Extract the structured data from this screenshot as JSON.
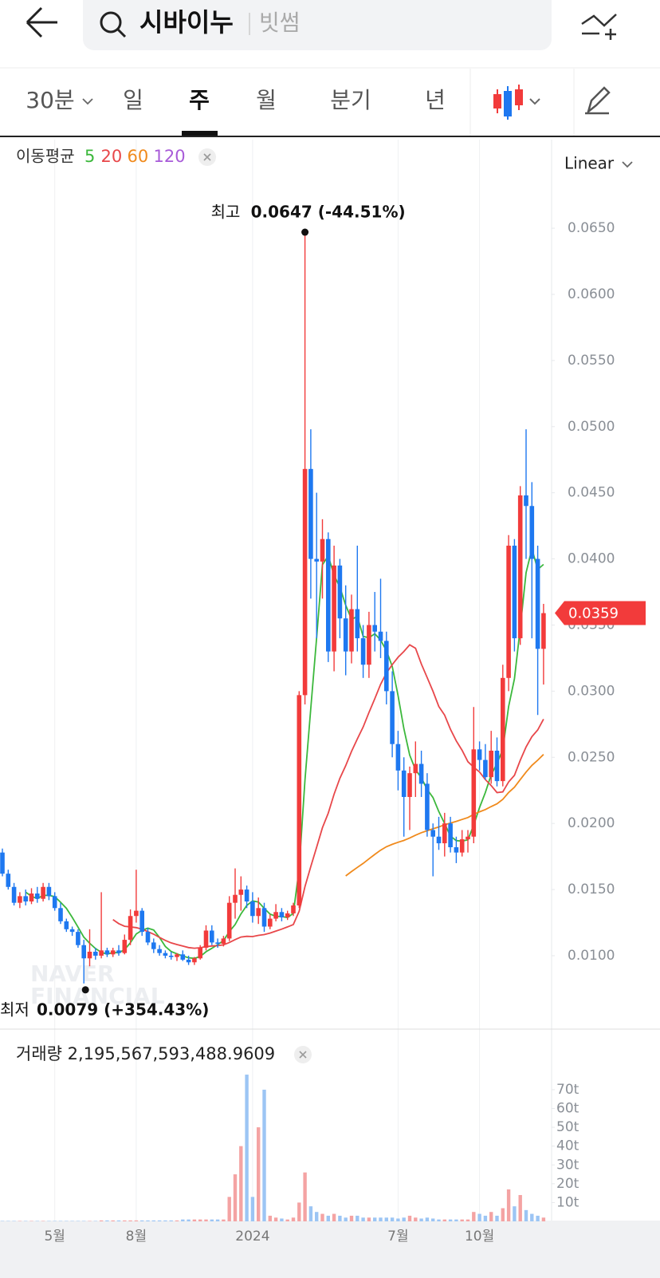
{
  "header": {
    "search": "시바이누",
    "exchange": "빗썸"
  },
  "tabs": [
    "30분",
    "일",
    "주",
    "월",
    "분기",
    "년"
  ],
  "selected_tab": 2,
  "scale_mode": "Linear",
  "watermark": [
    "NAVER",
    "FINANCIAL"
  ],
  "chart_data": [
    {
      "type": "candlestick",
      "legend_title": "이동평균",
      "moving_averages": [
        {
          "period": 5,
          "color": "#3cb83c"
        },
        {
          "period": 20,
          "color": "#e8474a"
        },
        {
          "period": 60,
          "color": "#f08a1c"
        },
        {
          "period": 120,
          "color": "#a85bd8"
        }
      ],
      "up_color": "#f23b3b",
      "down_color": "#1e78f0",
      "categories": [
        null,
        null,
        null,
        null,
        null,
        null,
        null,
        null,
        null,
        "5월",
        null,
        null,
        null,
        null,
        null,
        null,
        null,
        null,
        null,
        null,
        null,
        null,
        null,
        "8월",
        null,
        null,
        null,
        null,
        null,
        null,
        null,
        null,
        null,
        null,
        null,
        null,
        null,
        null,
        null,
        null,
        null,
        null,
        null,
        "2024",
        null,
        null,
        null,
        null,
        null,
        null,
        null,
        null,
        null,
        null,
        null,
        null,
        null,
        null,
        null,
        null,
        null,
        null,
        null,
        null,
        null,
        null,
        null,
        null,
        "7월",
        null,
        null,
        null,
        null,
        null,
        null,
        null,
        null,
        null,
        null,
        null,
        null,
        null,
        "10월",
        null,
        null,
        null,
        null,
        null,
        null,
        null,
        null,
        null,
        null,
        null
      ],
      "open": [
        0.0178,
        0.0162,
        0.0152,
        0.014,
        0.0145,
        0.0141,
        0.0147,
        0.0143,
        0.0152,
        0.0145,
        0.0136,
        0.0126,
        0.012,
        0.0118,
        0.0108,
        0.0098,
        0.0103,
        0.01,
        0.0104,
        0.0101,
        0.0104,
        0.0102,
        0.0112,
        0.013,
        0.0134,
        0.0118,
        0.011,
        0.0105,
        0.0102,
        0.01,
        0.0099,
        0.0101,
        0.0097,
        0.0095,
        0.0098,
        0.0106,
        0.0119,
        0.011,
        0.0109,
        0.0113,
        0.014,
        0.0146,
        0.015,
        0.0141,
        0.013,
        0.0136,
        0.0122,
        0.0128,
        0.0133,
        0.0129,
        0.0132,
        0.0138,
        0.0297,
        0.0468,
        0.04,
        0.0398,
        0.0415,
        0.033,
        0.0395,
        0.0355,
        0.033,
        0.0362,
        0.034,
        0.032,
        0.035,
        0.0345,
        0.0338,
        0.03,
        0.026,
        0.024,
        0.022,
        0.0238,
        0.0245,
        0.023,
        0.0195,
        0.019,
        0.0185,
        0.02,
        0.0182,
        0.0178,
        0.0188,
        0.019,
        0.0256,
        0.0248,
        0.0235,
        0.0255,
        0.0232,
        0.031,
        0.041,
        0.034,
        0.0448,
        0.044,
        0.04,
        0.0332
      ],
      "high": [
        0.0181,
        0.0165,
        0.0155,
        0.0148,
        0.015,
        0.0151,
        0.0152,
        0.0155,
        0.0155,
        0.0148,
        0.014,
        0.0128,
        0.0122,
        0.012,
        0.0112,
        0.012,
        0.0106,
        0.0148,
        0.0106,
        0.0106,
        0.0108,
        0.0116,
        0.0135,
        0.0165,
        0.0136,
        0.0121,
        0.0113,
        0.0108,
        0.0104,
        0.0103,
        0.0102,
        0.0104,
        0.01,
        0.0099,
        0.0108,
        0.0123,
        0.0123,
        0.0113,
        0.0115,
        0.0145,
        0.0166,
        0.016,
        0.0153,
        0.0148,
        0.0144,
        0.014,
        0.0131,
        0.0139,
        0.0136,
        0.0134,
        0.014,
        0.03,
        0.0647,
        0.0498,
        0.045,
        0.043,
        0.042,
        0.041,
        0.04,
        0.038,
        0.0373,
        0.041,
        0.035,
        0.036,
        0.0375,
        0.0385,
        0.0345,
        0.0315,
        0.027,
        0.025,
        0.0243,
        0.0262,
        0.0255,
        0.0238,
        0.02,
        0.0205,
        0.0208,
        0.0205,
        0.019,
        0.0195,
        0.0195,
        0.0288,
        0.0262,
        0.026,
        0.027,
        0.0265,
        0.032,
        0.0418,
        0.0415,
        0.0455,
        0.0498,
        0.0458,
        0.041,
        0.0366
      ],
      "low": [
        0.016,
        0.015,
        0.0138,
        0.0136,
        0.0138,
        0.0139,
        0.014,
        0.0141,
        0.0142,
        0.0134,
        0.0124,
        0.0118,
        0.0115,
        0.0106,
        0.0079,
        0.0092,
        0.0097,
        0.0098,
        0.0099,
        0.0099,
        0.01,
        0.0101,
        0.0108,
        0.0125,
        0.0115,
        0.0108,
        0.0102,
        0.01,
        0.0098,
        0.0097,
        0.0096,
        0.0096,
        0.0093,
        0.0093,
        0.0097,
        0.0104,
        0.0108,
        0.0106,
        0.0107,
        0.0111,
        0.0128,
        0.0134,
        0.0136,
        0.0125,
        0.0124,
        0.0118,
        0.012,
        0.0126,
        0.0126,
        0.0127,
        0.013,
        0.0136,
        0.029,
        0.037,
        0.034,
        0.037,
        0.0322,
        0.0315,
        0.034,
        0.0312,
        0.0321,
        0.033,
        0.031,
        0.031,
        0.033,
        0.0325,
        0.029,
        0.025,
        0.0225,
        0.019,
        0.0195,
        0.022,
        0.022,
        0.019,
        0.016,
        0.018,
        0.0175,
        0.0178,
        0.017,
        0.0175,
        0.0178,
        0.0185,
        0.024,
        0.0233,
        0.023,
        0.0228,
        0.0228,
        0.03,
        0.033,
        0.0335,
        0.04,
        0.034,
        0.0282,
        0.0305
      ],
      "close": [
        0.0162,
        0.0152,
        0.014,
        0.0145,
        0.0141,
        0.0147,
        0.0143,
        0.0152,
        0.0145,
        0.0136,
        0.0126,
        0.012,
        0.0118,
        0.0108,
        0.0098,
        0.0103,
        0.01,
        0.0104,
        0.0101,
        0.0104,
        0.0102,
        0.0112,
        0.013,
        0.0134,
        0.0118,
        0.011,
        0.0105,
        0.0102,
        0.01,
        0.0099,
        0.0101,
        0.0097,
        0.0095,
        0.0098,
        0.0106,
        0.0119,
        0.011,
        0.0109,
        0.0113,
        0.014,
        0.0146,
        0.015,
        0.0141,
        0.013,
        0.0136,
        0.0122,
        0.0128,
        0.0133,
        0.0129,
        0.0132,
        0.0138,
        0.0297,
        0.0468,
        0.04,
        0.0398,
        0.0415,
        0.033,
        0.0395,
        0.0355,
        0.033,
        0.0362,
        0.034,
        0.032,
        0.035,
        0.0345,
        0.0338,
        0.03,
        0.026,
        0.024,
        0.022,
        0.0238,
        0.0245,
        0.023,
        0.0195,
        0.019,
        0.0185,
        0.02,
        0.0182,
        0.0178,
        0.0188,
        0.019,
        0.0256,
        0.0248,
        0.0235,
        0.0255,
        0.0232,
        0.031,
        0.041,
        0.034,
        0.0448,
        0.044,
        0.04,
        0.0332,
        0.0359
      ],
      "ylim": [
        0.00445,
        0.0717
      ],
      "yticks": [
        {
          "value": 0.065,
          "label": "0.0650"
        },
        {
          "value": 0.06,
          "label": "0.0600"
        },
        {
          "value": 0.055,
          "label": "0.0550"
        },
        {
          "value": 0.05,
          "label": "0.0500"
        },
        {
          "value": 0.045,
          "label": "0.0450"
        },
        {
          "value": 0.04,
          "label": "0.0400"
        },
        {
          "value": 0.035,
          "label": "0.0350"
        },
        {
          "value": 0.03,
          "label": "0.0300"
        },
        {
          "value": 0.025,
          "label": "0.0250"
        },
        {
          "value": 0.02,
          "label": "0.0200"
        },
        {
          "value": 0.015,
          "label": "0.0150"
        },
        {
          "value": 0.01,
          "label": "0.0100"
        }
      ],
      "grid": false,
      "annotations": {
        "high": {
          "label": "최고",
          "text": "0.0647 (-44.51%)",
          "index": 52
        },
        "low": {
          "label": "최저",
          "text": "0.0079 (+354.43%)",
          "index": 14
        }
      }
    },
    {
      "type": "bar",
      "title": "거래량 2,195,567,593,488.9609",
      "up_color": "#f4a3a3",
      "down_color": "#9cc5f4",
      "values": [
        0.2,
        0.2,
        0.2,
        0.2,
        0.2,
        0.2,
        0.2,
        0.2,
        0.2,
        0.2,
        0.2,
        0.2,
        0.2,
        0.2,
        0.2,
        0.2,
        0.2,
        0.5,
        0.5,
        0.5,
        0.5,
        0.5,
        0.5,
        0.5,
        0.5,
        0.5,
        0.5,
        0.5,
        0.5,
        0.5,
        0.5,
        1,
        1,
        1,
        1,
        1,
        1,
        1,
        1,
        13,
        25,
        40,
        78,
        13,
        50,
        70,
        3,
        2,
        1.5,
        1,
        2,
        10,
        26,
        8,
        5,
        4,
        3,
        4,
        3,
        2,
        3,
        3,
        2,
        2,
        2,
        2,
        2,
        2,
        1.5,
        2,
        3,
        2,
        1.5,
        2,
        1.5,
        1,
        1,
        1,
        1,
        1,
        1,
        5,
        4,
        3,
        5,
        3,
        7,
        17,
        8,
        14,
        6,
        4,
        3,
        2
      ],
      "ylim": [
        0,
        81
      ],
      "yticks": [
        {
          "value": 70,
          "label": "70t"
        },
        {
          "value": 60,
          "label": "60t"
        },
        {
          "value": 50,
          "label": "50t"
        },
        {
          "value": 40,
          "label": "40t"
        },
        {
          "value": 30,
          "label": "30t"
        },
        {
          "value": 20,
          "label": "20t"
        },
        {
          "value": 10,
          "label": "10t"
        }
      ]
    }
  ]
}
